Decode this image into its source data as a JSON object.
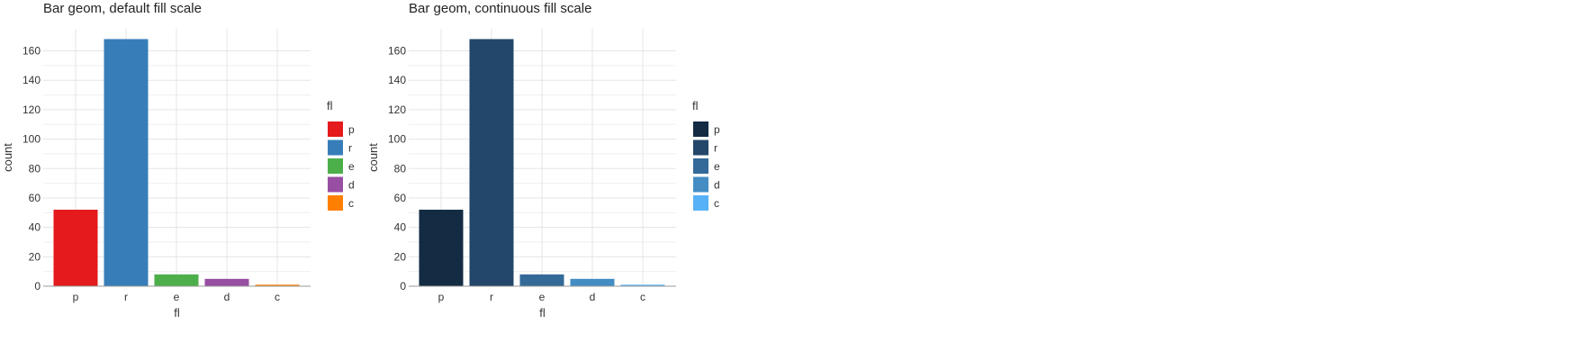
{
  "chart_data": [
    {
      "type": "bar",
      "title": "Bar geom, default fill scale",
      "xlabel": "fl",
      "ylabel": "count",
      "categories": [
        "p",
        "r",
        "e",
        "d",
        "c"
      ],
      "values": [
        52,
        168,
        8,
        5,
        1
      ],
      "colors": [
        "#e41a1c",
        "#377eb8",
        "#4daf4a",
        "#984ea3",
        "#ff7f00"
      ],
      "ylim": [
        0,
        175
      ],
      "yticks": [
        0,
        20,
        40,
        60,
        80,
        100,
        120,
        140,
        160
      ],
      "grid": true,
      "legend": {
        "title": "fl",
        "position": "right",
        "entries": [
          "p",
          "r",
          "e",
          "d",
          "c"
        ]
      }
    },
    {
      "type": "bar",
      "title": "Bar geom, continuous fill scale",
      "xlabel": "fl",
      "ylabel": "count",
      "categories": [
        "p",
        "r",
        "e",
        "d",
        "c"
      ],
      "values": [
        52,
        168,
        8,
        5,
        1
      ],
      "colors": [
        "#132b43",
        "#22476a",
        "#336a98",
        "#438dc4",
        "#56b1f7"
      ],
      "ylim": [
        0,
        175
      ],
      "yticks": [
        0,
        20,
        40,
        60,
        80,
        100,
        120,
        140,
        160
      ],
      "grid": true,
      "legend": {
        "title": "fl",
        "position": "right",
        "entries": [
          "p",
          "r",
          "e",
          "d",
          "c"
        ]
      }
    }
  ]
}
